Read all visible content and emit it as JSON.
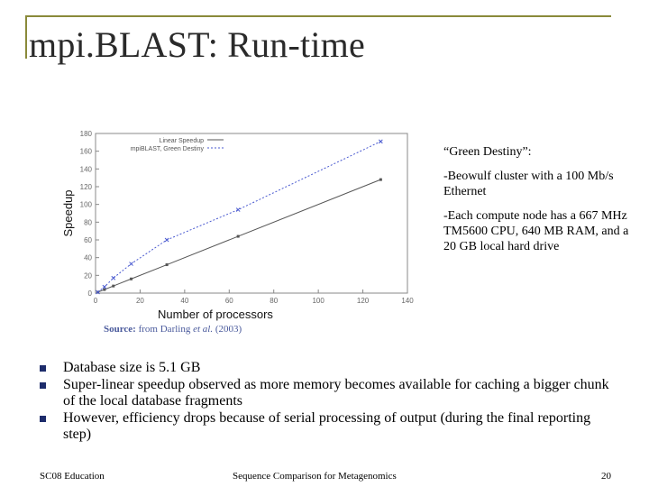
{
  "slide": {
    "title": "mpi.BLAST: Run-time"
  },
  "source": {
    "label": "Source:",
    "text_before": "from Darling",
    "et_al": "et al.",
    "year": "(2003)"
  },
  "side_notes": [
    "“Green Destiny”:",
    "-Beowulf cluster with a 100 Mb/s Ethernet",
    "-Each compute node has a 667 MHz TM5600 CPU, 640 MB RAM, and a 20 GB local hard drive"
  ],
  "bullets": [
    "Database size is 5.1 GB",
    "Super-linear speedup observed as more memory becomes available for caching a bigger chunk of the local database fragments",
    "However, efficiency drops because of serial processing of output (during the final reporting step)"
  ],
  "footer": {
    "left": "SC08 Education",
    "center": "Sequence Comparison for Metagenomics",
    "page_number": "20"
  },
  "colors": {
    "title": "#2a2a2a",
    "frame": "#8a8a3a",
    "source": "#4a5a9c",
    "bullet_marker": "#1d2c6b",
    "series_linear": "#555555",
    "series_mpiblast": "#4a5ad0"
  },
  "chart_data": {
    "type": "line",
    "xlabel": "Number of processors",
    "ylabel": "Speedup",
    "xlim": [
      0,
      140
    ],
    "ylim": [
      0,
      180
    ],
    "xticks": [
      0,
      20,
      40,
      60,
      80,
      100,
      120,
      140
    ],
    "yticks": [
      0,
      20,
      40,
      60,
      80,
      100,
      120,
      140,
      160,
      180
    ],
    "ytick_labels": [
      "0",
      "20",
      "40",
      "60",
      "80",
      "100",
      "120",
      "140",
      "160",
      "180"
    ],
    "grid": false,
    "legend_position": "top-left",
    "series": [
      {
        "name": "Linear Speedup",
        "style": "line-points",
        "x": [
          1,
          4,
          8,
          16,
          32,
          64,
          128
        ],
        "y": [
          1,
          4,
          8,
          16,
          32,
          64,
          128
        ]
      },
      {
        "name": "mpiBLAST, Green Destiny",
        "style": "dashed-points",
        "x": [
          1,
          4,
          8,
          16,
          32,
          64,
          128
        ],
        "y": [
          1,
          7,
          17,
          33,
          60,
          94,
          171
        ]
      }
    ]
  }
}
